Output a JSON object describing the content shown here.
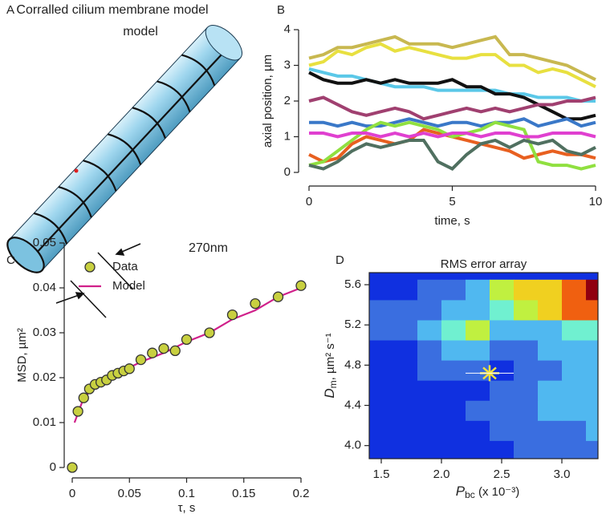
{
  "chart_data": [
    {
      "type": "diagram",
      "panel_label": "A",
      "title": "Corralled cilium membrane model",
      "annotation": "270nm"
    },
    {
      "type": "line",
      "panel_label": "B",
      "x_label": "time, s",
      "y_label": "axial position, µm",
      "xlim": [
        0,
        10
      ],
      "xticks": [
        0,
        5,
        10
      ],
      "ylim": [
        0,
        4
      ],
      "yticks": [
        0,
        1,
        2,
        3,
        4
      ],
      "x": [
        0,
        0.5,
        1,
        1.5,
        2,
        2.5,
        3,
        3.5,
        4,
        4.5,
        5,
        5.5,
        6,
        6.5,
        7,
        7.5,
        8,
        8.5,
        9,
        9.5,
        10
      ],
      "series": [
        {
          "color": "#c8b850",
          "values": [
            3.2,
            3.3,
            3.5,
            3.5,
            3.6,
            3.7,
            3.8,
            3.6,
            3.6,
            3.6,
            3.5,
            3.6,
            3.7,
            3.8,
            3.3,
            3.3,
            3.2,
            3.1,
            3.0,
            2.8,
            2.6
          ]
        },
        {
          "color": "#e8e040",
          "values": [
            3.0,
            3.1,
            3.4,
            3.3,
            3.5,
            3.6,
            3.4,
            3.5,
            3.4,
            3.3,
            3.2,
            3.2,
            3.3,
            3.3,
            3.0,
            3.0,
            2.8,
            2.9,
            2.8,
            2.6,
            2.4
          ]
        },
        {
          "color": "#5bc8e8",
          "values": [
            2.9,
            2.8,
            2.7,
            2.7,
            2.6,
            2.5,
            2.4,
            2.4,
            2.4,
            2.3,
            2.3,
            2.3,
            2.3,
            2.3,
            2.2,
            2.2,
            2.1,
            2.1,
            2.1,
            2.0,
            2.0
          ]
        },
        {
          "color": "#111111",
          "values": [
            2.8,
            2.6,
            2.5,
            2.5,
            2.6,
            2.5,
            2.6,
            2.5,
            2.5,
            2.5,
            2.6,
            2.4,
            2.4,
            2.2,
            2.2,
            2.1,
            1.9,
            1.7,
            1.5,
            1.5,
            1.6
          ]
        },
        {
          "color": "#a04070",
          "values": [
            2.0,
            2.1,
            1.9,
            1.7,
            1.6,
            1.7,
            1.8,
            1.7,
            1.5,
            1.6,
            1.7,
            1.8,
            1.7,
            1.8,
            1.7,
            1.8,
            1.9,
            1.9,
            2.0,
            2.0,
            2.1
          ]
        },
        {
          "color": "#3a78c8",
          "values": [
            1.4,
            1.4,
            1.3,
            1.4,
            1.3,
            1.3,
            1.4,
            1.5,
            1.4,
            1.3,
            1.4,
            1.4,
            1.3,
            1.4,
            1.4,
            1.5,
            1.3,
            1.4,
            1.5,
            1.3,
            1.4
          ]
        },
        {
          "color": "#e86020",
          "values": [
            0.5,
            0.3,
            0.4,
            0.8,
            1.0,
            0.9,
            0.8,
            0.9,
            1.2,
            1.1,
            1.0,
            0.9,
            0.8,
            0.7,
            0.6,
            0.4,
            0.5,
            0.6,
            0.5,
            0.5,
            0.4
          ]
        },
        {
          "color": "#90e040",
          "values": [
            0.2,
            0.3,
            0.6,
            0.9,
            1.2,
            1.4,
            1.3,
            1.4,
            1.3,
            1.2,
            1.0,
            1.1,
            1.2,
            1.4,
            1.3,
            1.2,
            0.3,
            0.2,
            0.2,
            0.1,
            0.2
          ]
        },
        {
          "color": "#507060",
          "values": [
            0.2,
            0.1,
            0.3,
            0.6,
            0.8,
            0.7,
            0.8,
            0.9,
            0.9,
            0.3,
            0.1,
            0.5,
            0.8,
            0.9,
            0.7,
            0.9,
            0.8,
            0.9,
            0.6,
            0.5,
            0.7
          ]
        },
        {
          "color": "#e040d0",
          "values": [
            1.1,
            1.1,
            1.0,
            1.1,
            1.1,
            1.0,
            1.1,
            1.0,
            1.1,
            1.0,
            1.1,
            1.1,
            1.0,
            1.1,
            1.1,
            1.0,
            1.0,
            1.1,
            1.1,
            1.1,
            1.0
          ]
        }
      ]
    },
    {
      "type": "scatter",
      "panel_label": "C",
      "x_label": "τ, s",
      "y_label": "MSD, µm²",
      "xlim": [
        0,
        0.2
      ],
      "xticks": [
        0,
        0.05,
        0.1,
        0.15,
        0.2
      ],
      "ylim": [
        0,
        0.05
      ],
      "yticks": [
        0,
        0.01,
        0.02,
        0.03,
        0.04,
        0.05
      ],
      "series": [
        {
          "name": "Data",
          "kind": "points",
          "color": "#c8d040",
          "x": [
            0,
            0.005,
            0.01,
            0.015,
            0.02,
            0.025,
            0.03,
            0.035,
            0.04,
            0.045,
            0.05,
            0.06,
            0.07,
            0.08,
            0.09,
            0.1,
            0.12,
            0.14,
            0.16,
            0.18,
            0.2
          ],
          "values": [
            0,
            0.0125,
            0.0155,
            0.0175,
            0.0185,
            0.019,
            0.0195,
            0.0205,
            0.021,
            0.0215,
            0.022,
            0.024,
            0.0255,
            0.0265,
            0.026,
            0.0285,
            0.03,
            0.034,
            0.0365,
            0.038,
            0.0405
          ]
        },
        {
          "name": "Model",
          "kind": "line",
          "color": "#d0208a",
          "x": [
            0.002,
            0.01,
            0.02,
            0.04,
            0.06,
            0.08,
            0.1,
            0.12,
            0.14,
            0.16,
            0.18,
            0.2
          ],
          "values": [
            0.01,
            0.0155,
            0.018,
            0.021,
            0.0235,
            0.0255,
            0.028,
            0.03,
            0.033,
            0.035,
            0.038,
            0.04
          ]
        }
      ]
    },
    {
      "type": "contour",
      "panel_label": "D",
      "title": "RMS error array",
      "x_label": "P",
      "x_label_sub": "bc",
      "x_label_suffix": " (x 10⁻³)",
      "y_label": "D",
      "y_label_sub": "m",
      "y_label_suffix": ", µm² s⁻¹",
      "xlim": [
        1.4,
        3.3
      ],
      "xticks": [
        1.5,
        {
          "value": 2,
          "label": "2.0"
        },
        2.5,
        {
          "value": 3,
          "label": "3.0"
        }
      ],
      "ylim": [
        3.87,
        5.72
      ],
      "yticks": [
        {
          "value": 4,
          "label": "4.0"
        },
        4.4,
        4.8,
        5.2,
        5.6
      ],
      "x": [
        1.5,
        1.7,
        1.9,
        2.1,
        2.3,
        2.5,
        2.7,
        2.9,
        3.1,
        3.3
      ],
      "y": [
        3.95,
        4.15,
        4.35,
        4.55,
        4.75,
        4.95,
        5.15,
        5.35,
        5.55
      ],
      "level_colors": [
        "#1030e0",
        "#3a6ee0",
        "#50b8f0",
        "#70f0d0",
        "#c0f040",
        "#f0d020",
        "#f06010",
        "#900010"
      ],
      "z": [
        [
          0,
          0,
          0,
          0,
          0,
          0,
          1,
          1,
          1,
          1
        ],
        [
          0,
          0,
          0,
          0,
          0,
          1,
          1,
          1,
          1,
          2
        ],
        [
          0,
          0,
          0,
          0,
          1,
          1,
          1,
          2,
          2,
          2
        ],
        [
          0,
          0,
          0,
          0,
          0,
          1,
          1,
          2,
          2,
          2
        ],
        [
          0,
          0,
          1,
          1,
          1,
          0,
          1,
          1,
          2,
          2
        ],
        [
          0,
          0,
          1,
          2,
          2,
          1,
          1,
          2,
          2,
          2
        ],
        [
          1,
          1,
          2,
          3,
          4,
          2,
          2,
          2,
          3,
          3
        ],
        [
          1,
          1,
          1,
          2,
          2,
          3,
          4,
          5,
          6,
          6
        ],
        [
          0,
          0,
          1,
          1,
          2,
          4,
          5,
          5,
          6,
          7
        ]
      ],
      "best": {
        "x": 2.4,
        "y": 4.72,
        "color": "#f0e040"
      }
    }
  ]
}
